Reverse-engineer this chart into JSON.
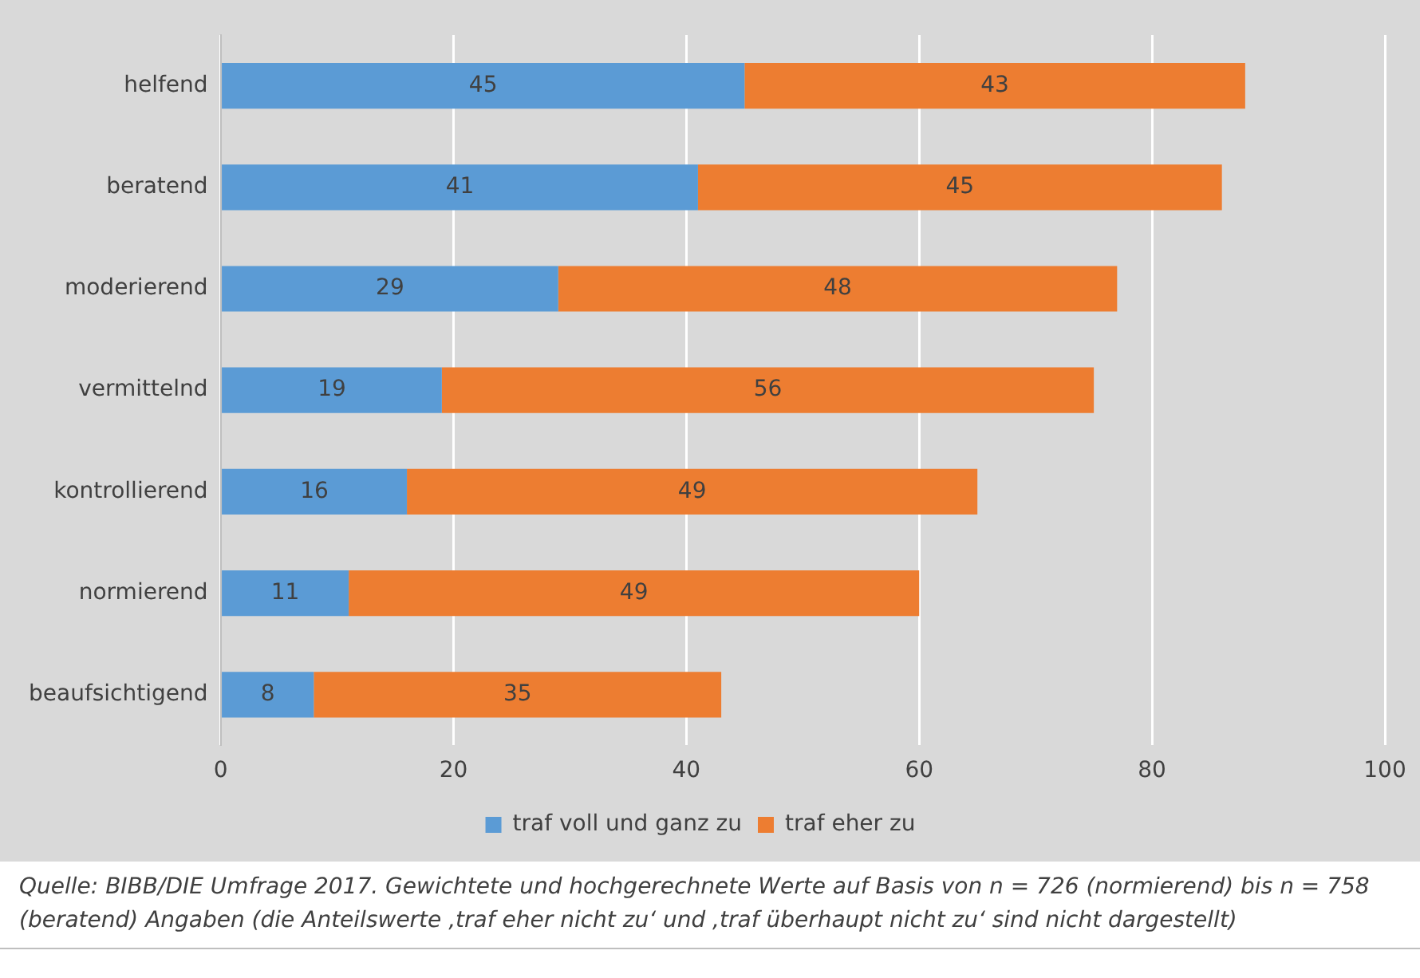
{
  "chart_data": {
    "type": "bar",
    "orientation": "horizontal",
    "stacked": true,
    "categories": [
      "helfend",
      "beratend",
      "moderierend",
      "vermittelnd",
      "kontrollierend",
      "normierend",
      "beaufsichtigend"
    ],
    "series": [
      {
        "name": "traf voll und ganz zu",
        "color": "#5b9bd5",
        "values": [
          45,
          41,
          29,
          19,
          16,
          11,
          8
        ]
      },
      {
        "name": "traf eher zu",
        "color": "#ed7d31",
        "values": [
          43,
          45,
          48,
          56,
          49,
          49,
          35
        ]
      }
    ],
    "xlim": [
      0,
      100
    ],
    "xticks": [
      0,
      20,
      40,
      60,
      80,
      100
    ],
    "grid": "x",
    "legend": "bottom",
    "data_labels": true,
    "annotations": [
      "Quelle: BIBB/DIE Umfrage 2017. Gewichtete und hochgerechnete Werte auf Basis von n = 726 (normierend) bis n = 758 (beratend) Angaben (die Anteilswerte ‚traf eher nicht zu‘ und ‚traf überhaupt nicht zu‘ sind nicht dargestellt)"
    ]
  }
}
